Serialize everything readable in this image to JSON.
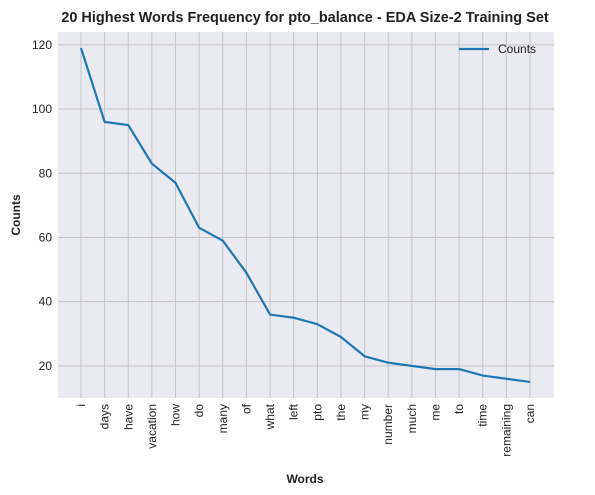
{
  "chart_data": {
    "type": "line",
    "title": "20 Highest Words Frequency for pto_balance - EDA Size-2 Training Set",
    "xlabel": "Words",
    "ylabel": "Counts",
    "categories": [
      "i",
      "days",
      "have",
      "vacation",
      "how",
      "do",
      "many",
      "of",
      "what",
      "left",
      "pto",
      "the",
      "my",
      "number",
      "much",
      "me",
      "to",
      "time",
      "remaining",
      "can"
    ],
    "series": [
      {
        "name": "Counts",
        "values": [
          119,
          96,
          95,
          83,
          77,
          63,
          59,
          49,
          36,
          35,
          33,
          29,
          23,
          21,
          20,
          19,
          19,
          17,
          16,
          15
        ]
      }
    ],
    "ylim": [
      10,
      124
    ],
    "yticks": [
      20,
      40,
      60,
      80,
      100,
      120
    ],
    "grid": true,
    "legend": "top-right",
    "colors": {
      "line": "#1f77b4",
      "plot_bg": "#eaeaf2",
      "grid": "#c4c4c8"
    }
  }
}
